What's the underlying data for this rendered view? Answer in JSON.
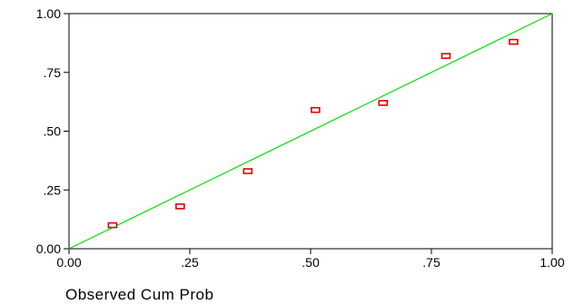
{
  "chart_data": {
    "type": "scatter",
    "title": "",
    "xlabel": "Observed Cum Prob",
    "ylabel": "",
    "xlim": [
      0,
      1
    ],
    "ylim": [
      0,
      1
    ],
    "xticks": [
      {
        "value": 0,
        "label": "0.00"
      },
      {
        "value": 0.25,
        "label": ".25"
      },
      {
        "value": 0.5,
        "label": ".50"
      },
      {
        "value": 0.75,
        "label": ".75"
      },
      {
        "value": 1,
        "label": "1.00"
      }
    ],
    "yticks": [
      {
        "value": 0,
        "label": "0.00"
      },
      {
        "value": 0.25,
        "label": ".25"
      },
      {
        "value": 0.5,
        "label": ".50"
      },
      {
        "value": 0.75,
        "label": ".75"
      },
      {
        "value": 1,
        "label": "1.00"
      }
    ],
    "grid": false,
    "legend": "none",
    "reference_line": {
      "from": [
        0,
        0
      ],
      "to": [
        1,
        1
      ],
      "color": "#00e000"
    },
    "marker_color": "#e00000",
    "points": [
      {
        "x": 0.09,
        "y": 0.1
      },
      {
        "x": 0.23,
        "y": 0.18
      },
      {
        "x": 0.37,
        "y": 0.33
      },
      {
        "x": 0.51,
        "y": 0.59
      },
      {
        "x": 0.65,
        "y": 0.62
      },
      {
        "x": 0.78,
        "y": 0.82
      },
      {
        "x": 0.92,
        "y": 0.88
      }
    ]
  }
}
